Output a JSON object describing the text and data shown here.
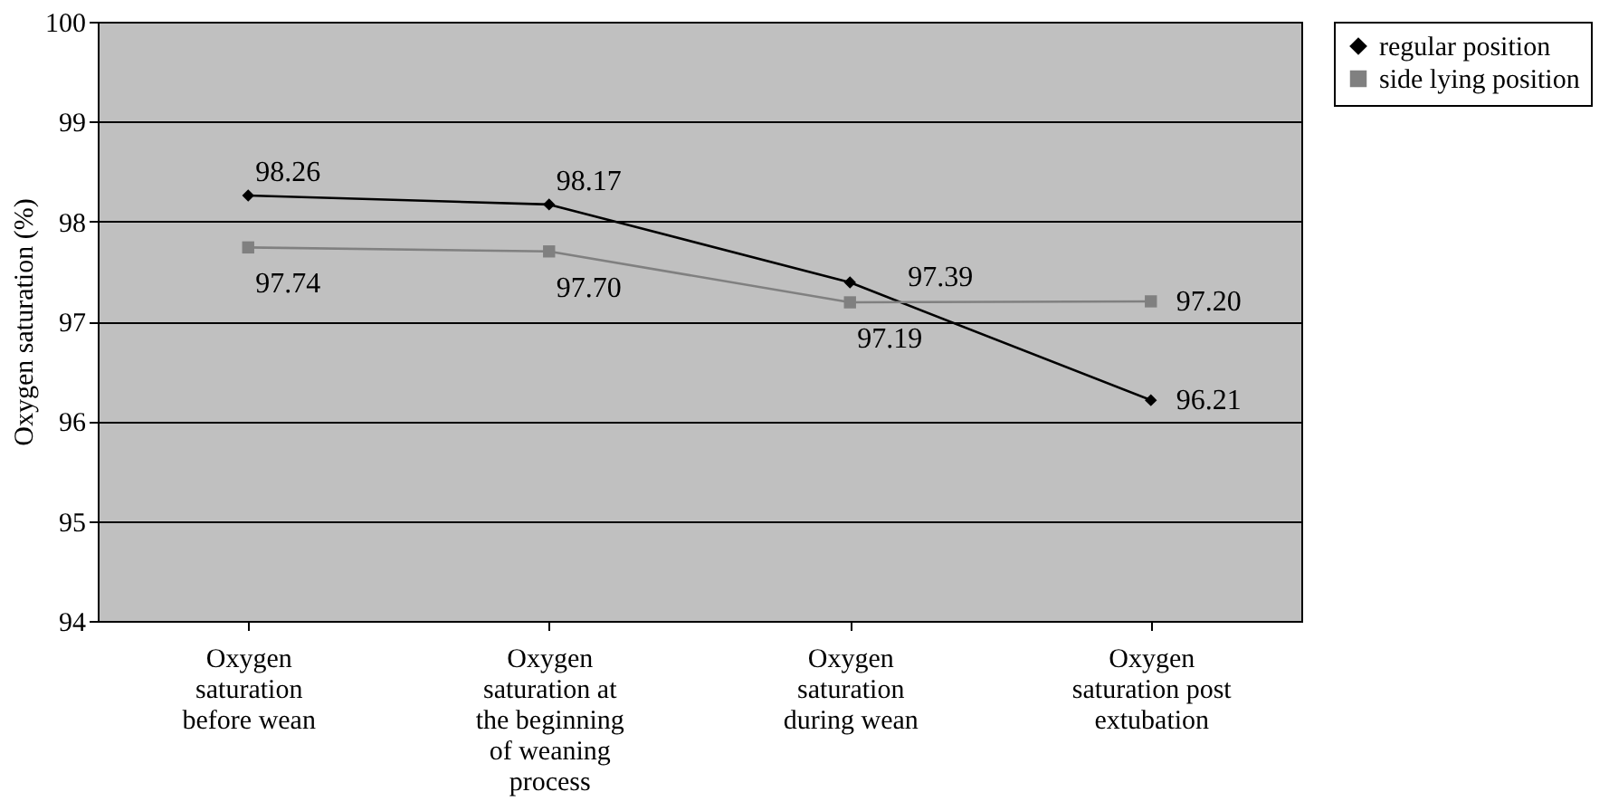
{
  "chart_data": {
    "type": "line",
    "ylabel": "Oxygen saturation (%)",
    "categories": [
      "Oxygen saturation before wean",
      "Oxygen saturation at the beginning of weaning process",
      "Oxygen saturation during wean",
      "Oxygen saturation post extubation"
    ],
    "series": [
      {
        "name": "regular position",
        "color": "#000000",
        "marker": "diamond",
        "values": [
          98.26,
          98.17,
          97.39,
          96.21
        ],
        "value_labels": [
          "98.26",
          "98.17",
          "97.39",
          "96.21"
        ]
      },
      {
        "name": "side lying position",
        "color": "#808080",
        "marker": "square",
        "values": [
          97.74,
          97.7,
          97.19,
          97.2
        ],
        "value_labels": [
          "97.74",
          "97.70",
          "97.19",
          "97.20"
        ]
      }
    ],
    "ylim": [
      94,
      100
    ],
    "yticks": [
      94,
      95,
      96,
      97,
      98,
      99,
      100
    ],
    "grid": "y",
    "legend": "right",
    "line_style": "solid"
  }
}
